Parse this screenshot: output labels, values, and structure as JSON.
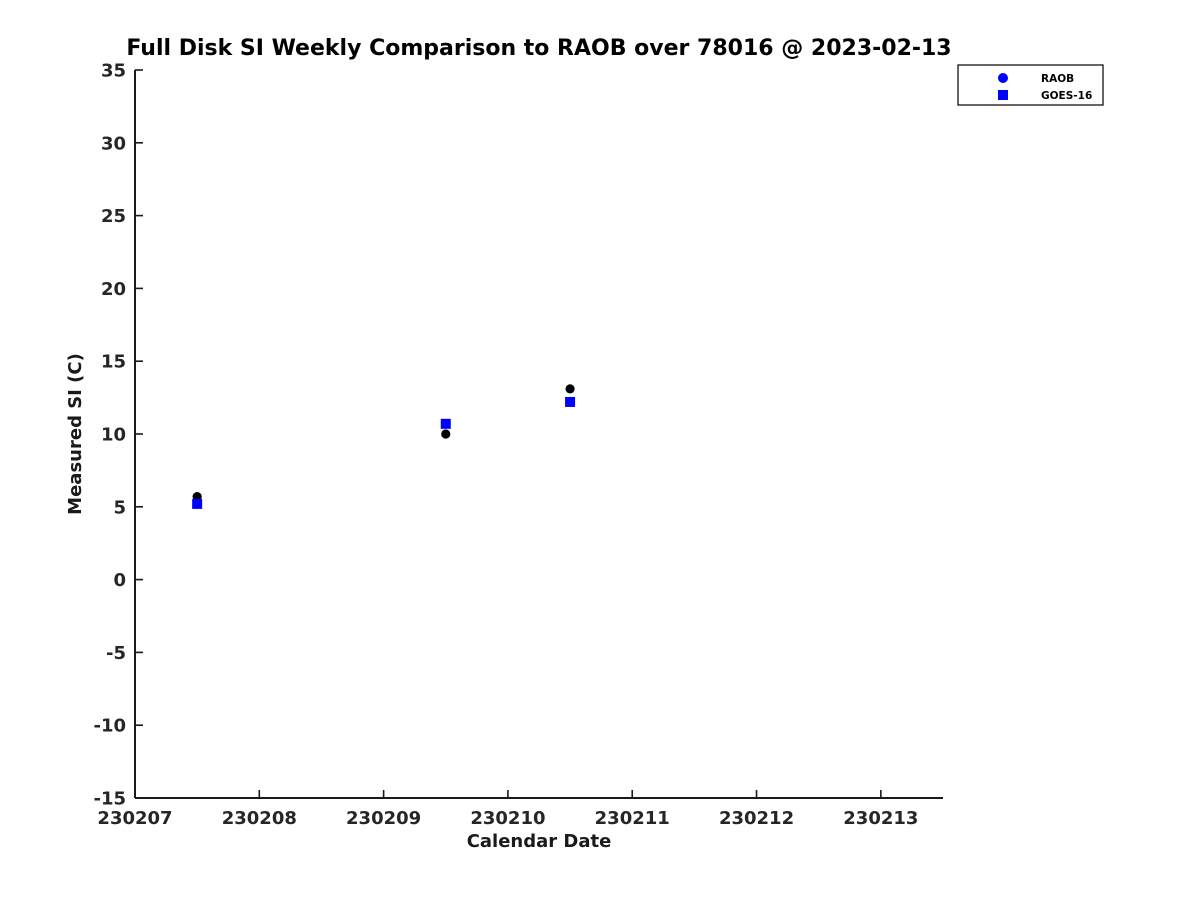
{
  "figure": {
    "background": "#ffffff",
    "axis_color": "#1a1a1a",
    "tick_label_color": "#262626"
  },
  "chart_data": {
    "type": "scatter",
    "title": "Full Disk SI Weekly Comparison to RAOB over 78016 @ 2023-02-13",
    "xlabel": "Calendar Date",
    "ylabel": "Measured SI (C)",
    "xlim": [
      230207,
      230213.5
    ],
    "ylim": [
      -15,
      35
    ],
    "x_ticks": [
      230207,
      230208,
      230209,
      230210,
      230211,
      230212,
      230213
    ],
    "x_tick_labels": [
      "230207",
      "230208",
      "230209",
      "230210",
      "230211",
      "230212",
      "230213"
    ],
    "y_ticks": [
      -15,
      -10,
      -5,
      0,
      5,
      10,
      15,
      20,
      25,
      30,
      35
    ],
    "y_tick_labels": [
      "-15",
      "-10",
      "-5",
      "0",
      "5",
      "10",
      "15",
      "20",
      "25",
      "30",
      "35"
    ],
    "grid": false,
    "legend_position": "top-right",
    "legend_entries": [
      "RAOB",
      "GOES-16"
    ],
    "series": [
      {
        "name": "RAOB",
        "marker": "circle",
        "plot_color": "#000000",
        "legend_color": "#0000ff",
        "x": [
          230207.5,
          230209.5,
          230210.5
        ],
        "y": [
          5.7,
          10.0,
          13.1
        ]
      },
      {
        "name": "GOES-16",
        "marker": "square",
        "plot_color": "#0000ff",
        "legend_color": "#0000ff",
        "x": [
          230207.5,
          230209.5,
          230210.5
        ],
        "y": [
          5.2,
          10.7,
          12.2
        ]
      }
    ]
  }
}
